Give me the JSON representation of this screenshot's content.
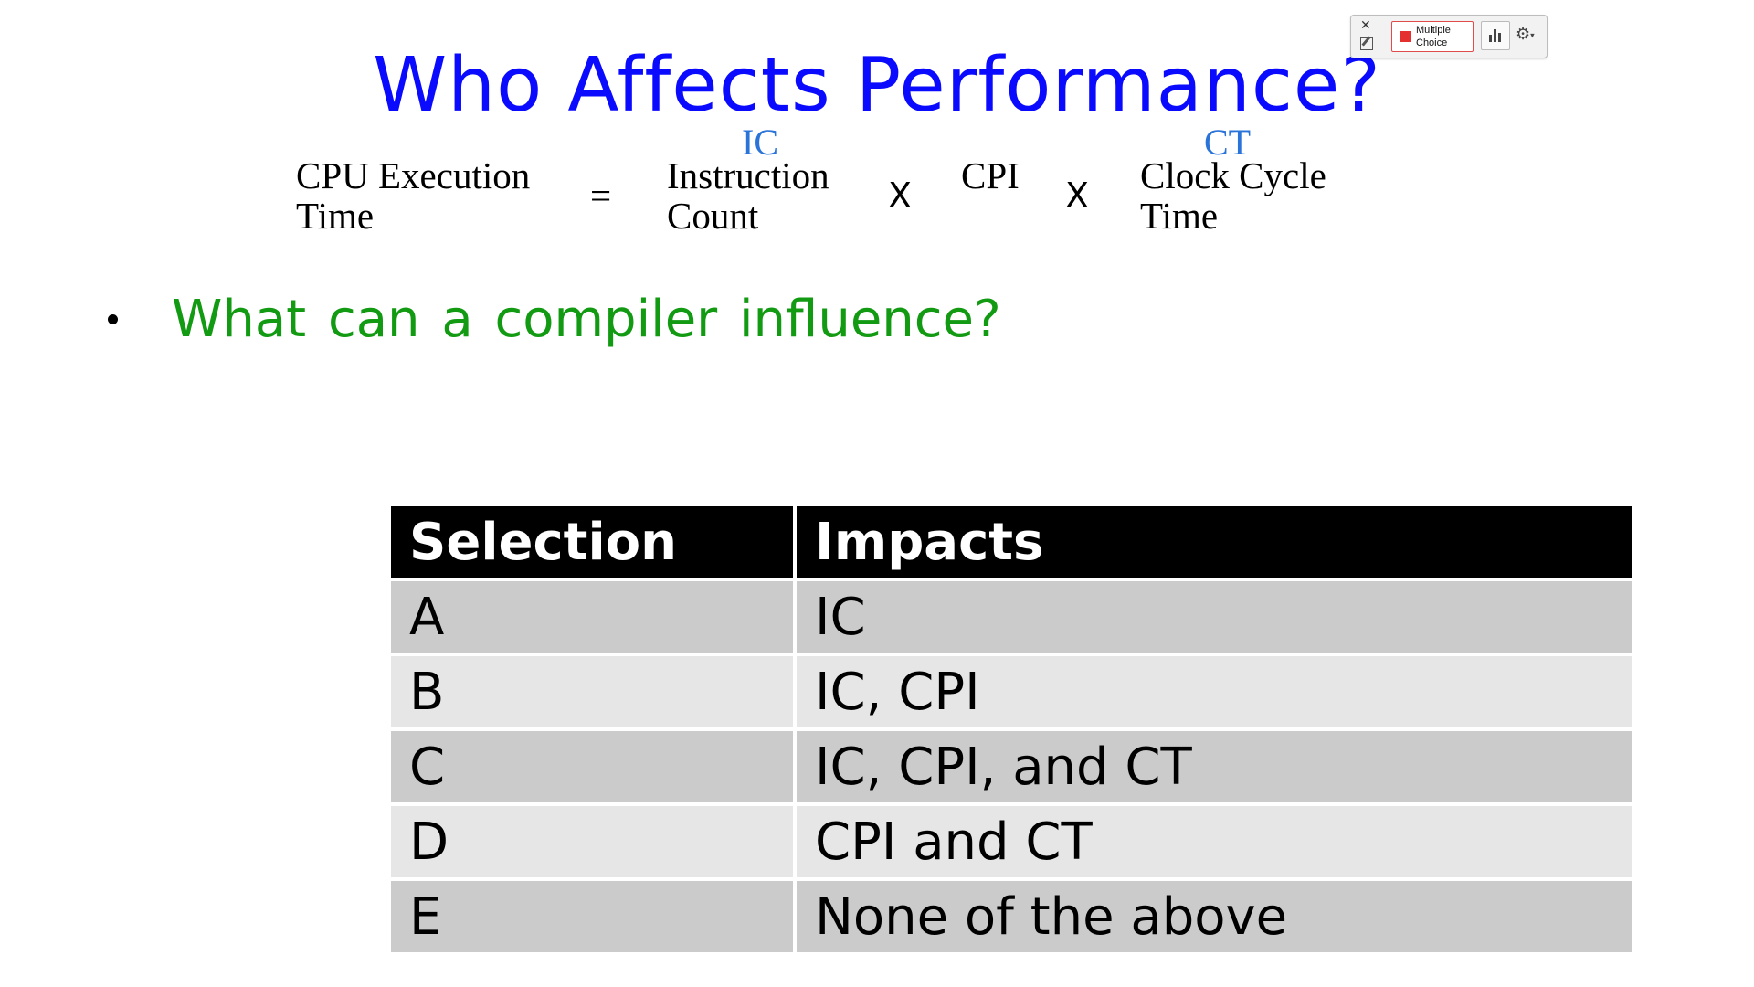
{
  "slide": {
    "title": "Who Affects Performance?",
    "equation": {
      "lhs_line1": "CPU Execution",
      "lhs_line2": "Time",
      "equals": "=",
      "term1_abbr": "IC",
      "term1_line1": "Instruction",
      "term1_line2": "Count",
      "times1": "X",
      "term2": "CPI",
      "times2": "X",
      "term3_abbr": "CT",
      "term3_line1": "Clock Cycle",
      "term3_line2": "Time"
    },
    "bullet": "What can a compiler influence?",
    "table": {
      "headers": [
        "Selection",
        "Impacts"
      ],
      "rows": [
        [
          "A",
          "IC"
        ],
        [
          "B",
          "IC, CPI"
        ],
        [
          "C",
          "IC, CPI, and CT"
        ],
        [
          "D",
          "CPI and CT"
        ],
        [
          "E",
          "None of the above"
        ]
      ]
    }
  },
  "toolbar": {
    "close_glyph": "✕",
    "mode_label": "Multiple Choice",
    "settings_glyph": "⚙",
    "settings_caret": "▾"
  },
  "colors": {
    "title": "#0a0aff",
    "bullet": "#129a12",
    "abbr": "#2a73d8",
    "header_bg": "#000000",
    "row_dark": "#cbcbcb",
    "row_light": "#e6e6e6"
  }
}
